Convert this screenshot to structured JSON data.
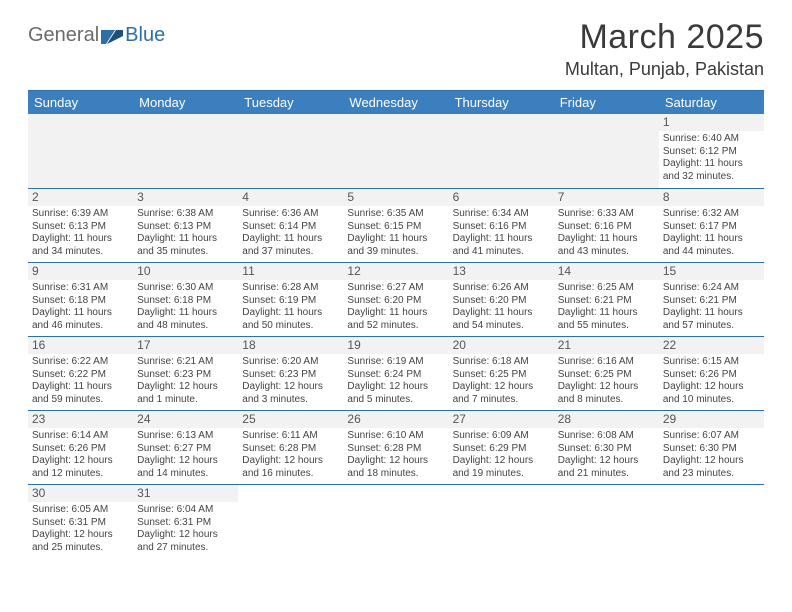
{
  "logo": {
    "text1": "General",
    "text2": "Blue"
  },
  "title": "March 2025",
  "location": "Multan, Punjab, Pakistan",
  "colors": {
    "header_bg": "#3b7fbf",
    "border": "#2f6fa8",
    "blank_bg": "#f2f2f2",
    "page_bg": "#ffffff",
    "text": "#444444"
  },
  "weekdays": [
    "Sunday",
    "Monday",
    "Tuesday",
    "Wednesday",
    "Thursday",
    "Friday",
    "Saturday"
  ],
  "weeks": [
    [
      {
        "blank": true
      },
      {
        "blank": true
      },
      {
        "blank": true
      },
      {
        "blank": true
      },
      {
        "blank": true
      },
      {
        "blank": true
      },
      {
        "day": "1",
        "sunrise": "Sunrise: 6:40 AM",
        "sunset": "Sunset: 6:12 PM",
        "daylight": "Daylight: 11 hours and 32 minutes."
      }
    ],
    [
      {
        "day": "2",
        "sunrise": "Sunrise: 6:39 AM",
        "sunset": "Sunset: 6:13 PM",
        "daylight": "Daylight: 11 hours and 34 minutes."
      },
      {
        "day": "3",
        "sunrise": "Sunrise: 6:38 AM",
        "sunset": "Sunset: 6:13 PM",
        "daylight": "Daylight: 11 hours and 35 minutes."
      },
      {
        "day": "4",
        "sunrise": "Sunrise: 6:36 AM",
        "sunset": "Sunset: 6:14 PM",
        "daylight": "Daylight: 11 hours and 37 minutes."
      },
      {
        "day": "5",
        "sunrise": "Sunrise: 6:35 AM",
        "sunset": "Sunset: 6:15 PM",
        "daylight": "Daylight: 11 hours and 39 minutes."
      },
      {
        "day": "6",
        "sunrise": "Sunrise: 6:34 AM",
        "sunset": "Sunset: 6:16 PM",
        "daylight": "Daylight: 11 hours and 41 minutes."
      },
      {
        "day": "7",
        "sunrise": "Sunrise: 6:33 AM",
        "sunset": "Sunset: 6:16 PM",
        "daylight": "Daylight: 11 hours and 43 minutes."
      },
      {
        "day": "8",
        "sunrise": "Sunrise: 6:32 AM",
        "sunset": "Sunset: 6:17 PM",
        "daylight": "Daylight: 11 hours and 44 minutes."
      }
    ],
    [
      {
        "day": "9",
        "sunrise": "Sunrise: 6:31 AM",
        "sunset": "Sunset: 6:18 PM",
        "daylight": "Daylight: 11 hours and 46 minutes."
      },
      {
        "day": "10",
        "sunrise": "Sunrise: 6:30 AM",
        "sunset": "Sunset: 6:18 PM",
        "daylight": "Daylight: 11 hours and 48 minutes."
      },
      {
        "day": "11",
        "sunrise": "Sunrise: 6:28 AM",
        "sunset": "Sunset: 6:19 PM",
        "daylight": "Daylight: 11 hours and 50 minutes."
      },
      {
        "day": "12",
        "sunrise": "Sunrise: 6:27 AM",
        "sunset": "Sunset: 6:20 PM",
        "daylight": "Daylight: 11 hours and 52 minutes."
      },
      {
        "day": "13",
        "sunrise": "Sunrise: 6:26 AM",
        "sunset": "Sunset: 6:20 PM",
        "daylight": "Daylight: 11 hours and 54 minutes."
      },
      {
        "day": "14",
        "sunrise": "Sunrise: 6:25 AM",
        "sunset": "Sunset: 6:21 PM",
        "daylight": "Daylight: 11 hours and 55 minutes."
      },
      {
        "day": "15",
        "sunrise": "Sunrise: 6:24 AM",
        "sunset": "Sunset: 6:21 PM",
        "daylight": "Daylight: 11 hours and 57 minutes."
      }
    ],
    [
      {
        "day": "16",
        "sunrise": "Sunrise: 6:22 AM",
        "sunset": "Sunset: 6:22 PM",
        "daylight": "Daylight: 11 hours and 59 minutes."
      },
      {
        "day": "17",
        "sunrise": "Sunrise: 6:21 AM",
        "sunset": "Sunset: 6:23 PM",
        "daylight": "Daylight: 12 hours and 1 minute."
      },
      {
        "day": "18",
        "sunrise": "Sunrise: 6:20 AM",
        "sunset": "Sunset: 6:23 PM",
        "daylight": "Daylight: 12 hours and 3 minutes."
      },
      {
        "day": "19",
        "sunrise": "Sunrise: 6:19 AM",
        "sunset": "Sunset: 6:24 PM",
        "daylight": "Daylight: 12 hours and 5 minutes."
      },
      {
        "day": "20",
        "sunrise": "Sunrise: 6:18 AM",
        "sunset": "Sunset: 6:25 PM",
        "daylight": "Daylight: 12 hours and 7 minutes."
      },
      {
        "day": "21",
        "sunrise": "Sunrise: 6:16 AM",
        "sunset": "Sunset: 6:25 PM",
        "daylight": "Daylight: 12 hours and 8 minutes."
      },
      {
        "day": "22",
        "sunrise": "Sunrise: 6:15 AM",
        "sunset": "Sunset: 6:26 PM",
        "daylight": "Daylight: 12 hours and 10 minutes."
      }
    ],
    [
      {
        "day": "23",
        "sunrise": "Sunrise: 6:14 AM",
        "sunset": "Sunset: 6:26 PM",
        "daylight": "Daylight: 12 hours and 12 minutes."
      },
      {
        "day": "24",
        "sunrise": "Sunrise: 6:13 AM",
        "sunset": "Sunset: 6:27 PM",
        "daylight": "Daylight: 12 hours and 14 minutes."
      },
      {
        "day": "25",
        "sunrise": "Sunrise: 6:11 AM",
        "sunset": "Sunset: 6:28 PM",
        "daylight": "Daylight: 12 hours and 16 minutes."
      },
      {
        "day": "26",
        "sunrise": "Sunrise: 6:10 AM",
        "sunset": "Sunset: 6:28 PM",
        "daylight": "Daylight: 12 hours and 18 minutes."
      },
      {
        "day": "27",
        "sunrise": "Sunrise: 6:09 AM",
        "sunset": "Sunset: 6:29 PM",
        "daylight": "Daylight: 12 hours and 19 minutes."
      },
      {
        "day": "28",
        "sunrise": "Sunrise: 6:08 AM",
        "sunset": "Sunset: 6:30 PM",
        "daylight": "Daylight: 12 hours and 21 minutes."
      },
      {
        "day": "29",
        "sunrise": "Sunrise: 6:07 AM",
        "sunset": "Sunset: 6:30 PM",
        "daylight": "Daylight: 12 hours and 23 minutes."
      }
    ],
    [
      {
        "day": "30",
        "sunrise": "Sunrise: 6:05 AM",
        "sunset": "Sunset: 6:31 PM",
        "daylight": "Daylight: 12 hours and 25 minutes."
      },
      {
        "day": "31",
        "sunrise": "Sunrise: 6:04 AM",
        "sunset": "Sunset: 6:31 PM",
        "daylight": "Daylight: 12 hours and 27 minutes."
      },
      {
        "blank": true,
        "noborder": true
      },
      {
        "blank": true,
        "noborder": true
      },
      {
        "blank": true,
        "noborder": true
      },
      {
        "blank": true,
        "noborder": true
      },
      {
        "blank": true,
        "noborder": true
      }
    ]
  ]
}
